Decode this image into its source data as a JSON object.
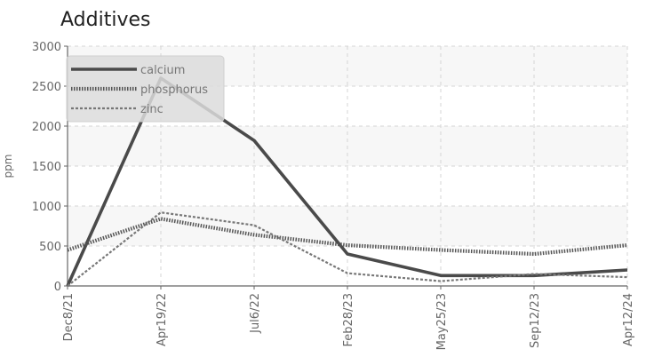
{
  "chart_data": {
    "type": "line",
    "title": "Additives",
    "xlabel": "",
    "ylabel": "ppm",
    "categories": [
      "Dec8/21",
      "Apr19/22",
      "Jul6/22",
      "Feb28/23",
      "May25/23",
      "Sep12/23",
      "Apr12/24"
    ],
    "ylim": [
      0,
      3000
    ],
    "yticks": [
      0,
      500,
      1000,
      1500,
      2000,
      2500,
      3000
    ],
    "grid": true,
    "legend_position": "top-left",
    "series": [
      {
        "name": "calcium",
        "values": [
          0,
          2600,
          1820,
          400,
          130,
          130,
          200
        ],
        "color": "#4a4a4a",
        "style": "solid"
      },
      {
        "name": "phosphorus",
        "values": [
          450,
          840,
          640,
          510,
          450,
          400,
          510
        ],
        "color": "#555555",
        "style": "dotted"
      },
      {
        "name": "zinc",
        "values": [
          0,
          920,
          760,
          160,
          60,
          150,
          110
        ],
        "color": "#777777",
        "style": "dashed"
      }
    ]
  }
}
